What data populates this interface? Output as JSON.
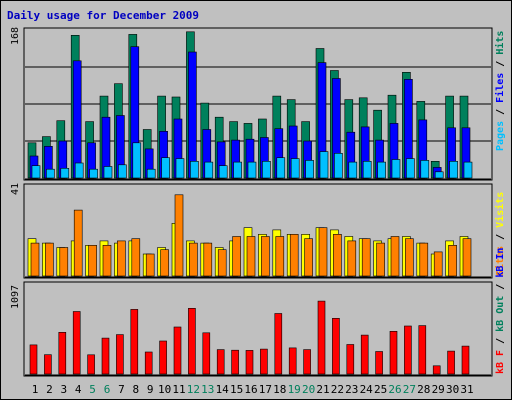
{
  "title": "Daily usage for December 2009",
  "colors": {
    "hits": "#00805c",
    "files": "#0000ff",
    "pages": "#00c0ff",
    "visits": "#ffff00",
    "sites": "#ff8000",
    "kbin": "#ff0000",
    "separator": "#000000",
    "weekend_day": "#00805c",
    "weekday_day": "#000000",
    "panel_bg": "#c0c0c0",
    "title": "#0000c0"
  },
  "panels": {
    "top": {
      "max_label": "168",
      "legend": [
        "Pages",
        "Files",
        "Hits"
      ]
    },
    "middle": {
      "max_label": "41",
      "legend": [
        "Visits",
        "Sites"
      ]
    },
    "bottom": {
      "max_label": "1097",
      "legend": [
        "kB F",
        "kB Out",
        "kB In"
      ]
    }
  },
  "chart_data": {
    "type": "bar",
    "title": "Daily usage for December 2009",
    "x": [
      "1",
      "2",
      "3",
      "4",
      "5",
      "6",
      "7",
      "8",
      "9",
      "10",
      "11",
      "12",
      "13",
      "14",
      "15",
      "16",
      "17",
      "18",
      "19",
      "20",
      "21",
      "22",
      "23",
      "24",
      "25",
      "26",
      "27",
      "28",
      "29",
      "30",
      "31"
    ],
    "weekend_days": [
      "5",
      "6",
      "12",
      "13",
      "19",
      "20",
      "26",
      "27"
    ],
    "charts": [
      {
        "name": "top",
        "ylim": [
          0,
          168
        ],
        "series": [
          {
            "name": "Hits",
            "values": [
              40,
              47,
              65,
              162,
              64,
              93,
              107,
              163,
              55,
              93,
              92,
              166,
              85,
              69,
              64,
              62,
              67,
              93,
              89,
              64,
              147,
              122,
              89,
              91,
              77,
              94,
              120,
              87,
              19,
              93,
              93
            ]
          },
          {
            "name": "Files",
            "values": [
              25,
              36,
              42,
              133,
              40,
              69,
              71,
              149,
              33,
              53,
              67,
              143,
              55,
              41,
              43,
              44,
              46,
              56,
              59,
              42,
              131,
              113,
              52,
              58,
              43,
              62,
              112,
              66,
              12,
              57,
              57
            ]
          },
          {
            "name": "Pages",
            "values": [
              14,
              10,
              11,
              17,
              10,
              13,
              15,
              40,
              10,
              23,
              22,
              19,
              18,
              14,
              18,
              18,
              19,
              23,
              22,
              20,
              30,
              28,
              18,
              19,
              18,
              21,
              22,
              20,
              7,
              19,
              18
            ]
          }
        ]
      },
      {
        "name": "middle",
        "ylim": [
          0,
          41
        ],
        "series": [
          {
            "name": "Visits",
            "values": [
              17,
              15,
              13,
              16,
              14,
              16,
              15,
              16,
              10,
              13,
              24,
              16,
              15,
              13,
              16,
              22,
              19,
              21,
              19,
              19,
              22,
              21,
              18,
              17,
              16,
              17,
              18,
              15,
              10,
              16,
              18
            ]
          },
          {
            "name": "Sites",
            "values": [
              15,
              15,
              13,
              30,
              14,
              14,
              16,
              17,
              10,
              12,
              37,
              15,
              15,
              12,
              18,
              18,
              18,
              18,
              19,
              17,
              22,
              19,
              16,
              17,
              15,
              18,
              17,
              15,
              11,
              14,
              17
            ]
          }
        ]
      },
      {
        "name": "bottom",
        "ylim": [
          0,
          1097
        ],
        "series": [
          {
            "name": "kB In",
            "values": [
              355,
              235,
              508,
              762,
              234,
              438,
              480,
              787,
              268,
              402,
              573,
              801,
              502,
              298,
              290,
              288,
              303,
              737,
              318,
              297,
              889,
              679,
              359,
              474,
              274,
              521,
              585,
              590,
              100,
              279,
              340
            ]
          }
        ]
      }
    ]
  }
}
